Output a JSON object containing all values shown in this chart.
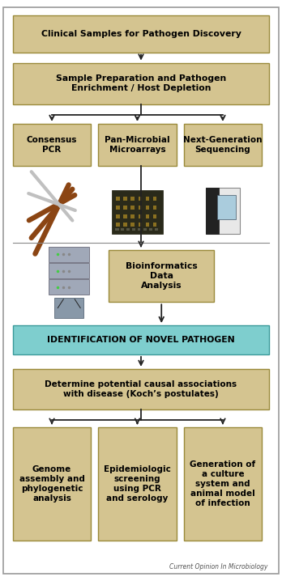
{
  "background_color": "#ffffff",
  "box_fill_tan": "#d4c490",
  "box_fill_teal": "#7ecece",
  "box_outline_tan": "#9a8a3a",
  "box_outline_teal": "#3a9a9a",
  "arrow_color": "#222222",
  "line_color": "#888888",
  "box1_text": "Clinical Samples for Pathogen Discovery",
  "box2_text": "Sample Preparation and Pathogen\nEnrichment / Host Depletion",
  "box3a_text": "Consensus\nPCR",
  "box3b_text": "Pan-Microbial\nMicroarrays",
  "box3c_text": "Next-Generation\nSequencing",
  "box4_text": "Bioinformatics\nData\nAnalysis",
  "box5_text": "IDENTIFICATION OF NOVEL PATHOGEN",
  "box6_text": "Determine potential causal associations\nwith disease (Koch’s postulates)",
  "box7a_text": "Genome\nassembly and\nphylogenetic\nanalysis",
  "box7b_text": "Epidemiologic\nscreening\nusing PCR\nand serology",
  "box7c_text": "Generation of\na culture\nsystem and\nanimal model\nof infection",
  "caption": "Current Opinion In Microbiology",
  "outer_border": "#999999"
}
